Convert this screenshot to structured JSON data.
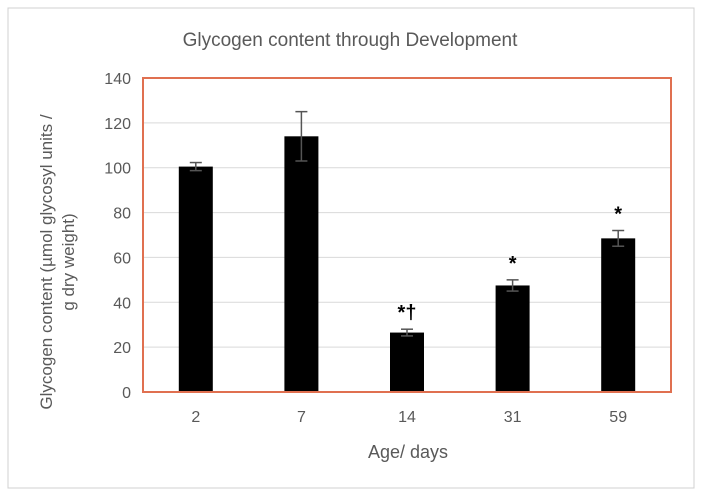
{
  "chart_data": {
    "type": "bar",
    "title": "Glycogen content through Development",
    "xlabel": "Age/ days",
    "ylabel_lines": [
      "Glycogen content (µmol glycosyl units /",
      "g dry weight)"
    ],
    "categories": [
      "2",
      "7",
      "14",
      "31",
      "59"
    ],
    "values": [
      100.5,
      114,
      26.5,
      47.5,
      68.5
    ],
    "error": [
      1.8,
      11,
      1.5,
      2.5,
      3.5
    ],
    "annotations": [
      "",
      "",
      "*†",
      "*",
      "*"
    ],
    "ylim": [
      0,
      140
    ],
    "yticks": [
      "0",
      "20",
      "40",
      "60",
      "80",
      "100",
      "120",
      "140"
    ],
    "grid": true,
    "colors": {
      "bar": "#000000",
      "plot_border": "#e07050",
      "grid": "#d9d9d9",
      "error_bar": "#555555",
      "chart_border": "#d0d0d0"
    }
  }
}
